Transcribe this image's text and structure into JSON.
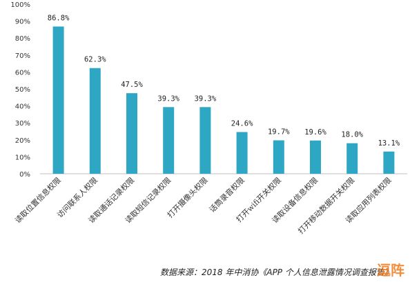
{
  "chart_data": {
    "type": "bar",
    "categories": [
      "读取位置信息权限",
      "访问联系人权限",
      "读取通话记录权限",
      "读取短信记录权限",
      "打开摄像头权限",
      "话筒录音权限",
      "打开wifi开关权限",
      "读取设备信息权限",
      "打开移动数据开关权限",
      "读取应用列表权限"
    ],
    "values": [
      86.8,
      62.3,
      47.5,
      39.3,
      39.3,
      24.6,
      19.7,
      19.6,
      18.0,
      13.1
    ],
    "value_labels": [
      "86.8%",
      "62.3%",
      "47.5%",
      "39.3%",
      "39.3%",
      "24.6%",
      "19.7%",
      "19.6%",
      "18.0%",
      "13.1%"
    ],
    "y_ticks": [
      "0%",
      "10%",
      "20%",
      "30%",
      "40%",
      "50%",
      "60%",
      "70%",
      "80%",
      "90%",
      "100%"
    ],
    "ylim": [
      0,
      100
    ],
    "grid": false,
    "bar_color": "#2ea7c4",
    "title": "",
    "xlabel": "",
    "ylabel": ""
  },
  "source_note": "数据来源：2018 年中消协《APP 个人信息泄露情况调查报告》",
  "watermark": "逗阵"
}
